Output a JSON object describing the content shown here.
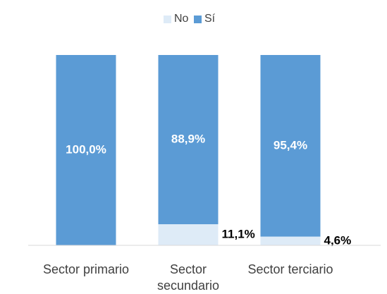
{
  "chart_data": {
    "type": "stacked_bar",
    "categories": [
      "Sector primario",
      "Sector secundario",
      "Sector terciario"
    ],
    "series": [
      {
        "name": "No",
        "color": "#deebf7",
        "values": [
          0,
          11.1,
          4.6
        ],
        "value_labels": [
          null,
          "11,1%",
          "4,6%"
        ]
      },
      {
        "name": "Sí",
        "color": "#5b9bd5",
        "values": [
          100,
          88.9,
          95.4
        ],
        "value_labels": [
          "100,0%",
          "88,9%",
          "95,4%"
        ]
      }
    ],
    "legend": "top"
  }
}
